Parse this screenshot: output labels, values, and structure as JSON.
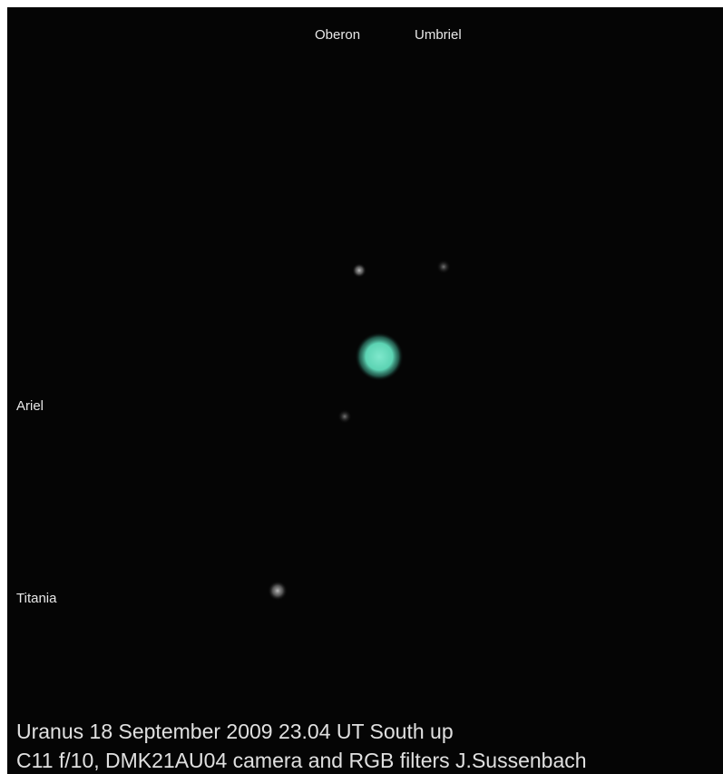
{
  "moon_labels": [
    "Oberon",
    "Umbriel",
    "Ariel",
    "Titania"
  ],
  "caption": [
    "Uranus 18 September 2009 23.04 UT South up",
    "C11 f/10, DMK21AU04 camera and RGB filters  J.Sussenbach"
  ]
}
